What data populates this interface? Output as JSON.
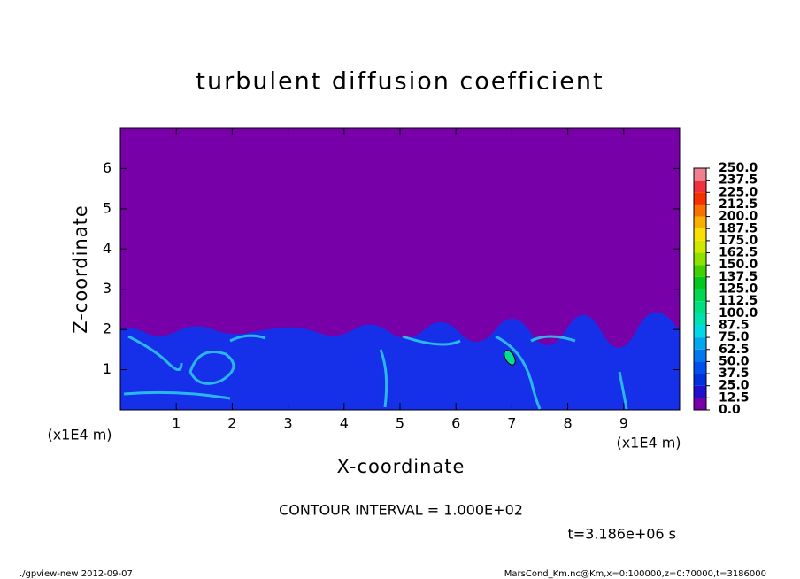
{
  "chart_data": {
    "type": "contour",
    "title": "turbulent diffusion coefficient",
    "x_label": "X-coordinate",
    "y_label": "Z-coordinate",
    "x_unit": "(x1E4 m)",
    "y_unit": "(x1E4 m)",
    "xlim": [
      0,
      10
    ],
    "ylim": [
      0,
      7
    ],
    "xticks": [
      1,
      2,
      3,
      4,
      5,
      6,
      7,
      8,
      9
    ],
    "yticks": [
      1,
      2,
      3,
      4,
      5,
      6
    ],
    "colorbar": {
      "levels": [
        {
          "value": 0,
          "label": "0.0"
        },
        {
          "value": 12.5,
          "label": "12.5"
        },
        {
          "value": 25,
          "label": "25.0"
        },
        {
          "value": 37.5,
          "label": "37.5"
        },
        {
          "value": 50,
          "label": "50.0"
        },
        {
          "value": 62.5,
          "label": "62.5"
        },
        {
          "value": 75,
          "label": "75.0"
        },
        {
          "value": 87.5,
          "label": "87.5"
        },
        {
          "value": 100,
          "label": "100.0"
        },
        {
          "value": 112.5,
          "label": "112.5"
        },
        {
          "value": 125,
          "label": "125.0"
        },
        {
          "value": 137.5,
          "label": "137.5"
        },
        {
          "value": 150,
          "label": "150.0"
        },
        {
          "value": 162.5,
          "label": "162.5"
        },
        {
          "value": 175,
          "label": "175.0"
        },
        {
          "value": 187.5,
          "label": "187.5"
        },
        {
          "value": 200,
          "label": "200.0"
        },
        {
          "value": 212.5,
          "label": "212.5"
        },
        {
          "value": 225,
          "label": "225.0"
        },
        {
          "value": 237.5,
          "label": "237.5"
        },
        {
          "value": 250,
          "label": "250.0"
        }
      ],
      "colors": [
        "#7800a8",
        "#2010d0",
        "#0030e0",
        "#0050f0",
        "#0078f0",
        "#00a8f0",
        "#00d8e8",
        "#00e0b0",
        "#00e080",
        "#00d850",
        "#00c820",
        "#40d000",
        "#90e000",
        "#d0e800",
        "#f8e000",
        "#f8b000",
        "#f87000",
        "#f83000",
        "#f03040",
        "#f08090"
      ]
    },
    "contour_interval": "CONTOUR INTERVAL = 1.000E+02",
    "time": "t=3.186e+06 s"
  },
  "footer": {
    "left": "./gpview-new  2012-09-07",
    "right": "MarsCond_Km.nc@Km,x=0:100000,z=0:70000,t=3186000"
  }
}
